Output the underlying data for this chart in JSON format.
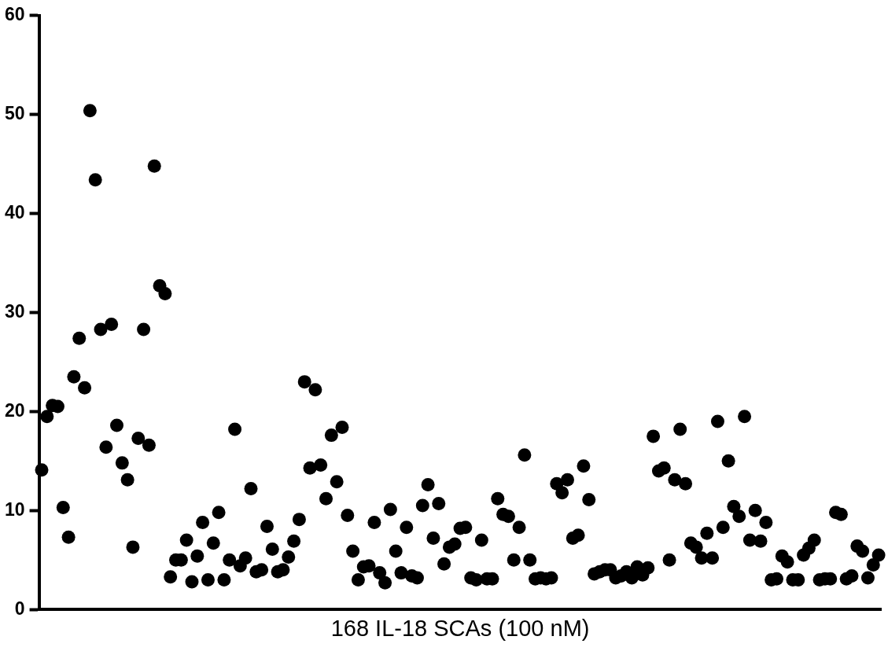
{
  "chart_data": {
    "type": "scatter",
    "xlabel": "168 IL-18 SCAs (100 nM)",
    "categories": [
      null,
      null,
      null,
      null,
      null,
      null,
      null,
      null,
      null,
      null,
      null,
      null,
      null,
      null,
      null,
      null,
      null,
      null,
      null,
      null,
      null,
      null,
      null,
      null,
      null,
      null,
      null,
      null,
      null,
      null,
      null,
      null,
      null,
      null,
      null,
      null,
      null,
      null,
      null,
      null,
      null,
      null,
      null,
      null,
      null,
      null,
      null,
      null,
      null,
      null,
      null,
      null,
      null,
      null,
      null,
      null,
      null,
      null,
      null,
      null,
      null,
      null,
      null,
      null,
      null,
      null,
      null,
      null,
      null,
      null,
      null,
      null,
      null,
      null,
      null,
      null,
      null,
      null,
      null,
      null,
      null,
      null,
      null,
      null,
      null,
      null,
      null,
      null,
      null,
      null,
      null,
      null,
      null,
      null,
      null,
      null,
      null,
      null,
      null,
      null,
      null,
      null,
      null,
      null,
      null,
      null,
      null,
      null,
      null,
      null,
      null,
      null,
      null,
      null,
      null,
      null,
      null,
      null,
      null,
      null,
      null,
      null,
      null,
      null,
      null,
      null,
      null,
      null,
      null,
      null,
      null,
      null,
      null,
      null,
      null,
      null,
      null,
      null,
      null,
      null,
      null,
      null,
      null,
      null,
      null,
      null,
      null,
      null,
      null,
      null,
      null,
      null,
      null,
      null,
      null,
      null,
      null
    ],
    "values": [
      14.1,
      19.5,
      20.6,
      20.5,
      10.3,
      7.3,
      23.5,
      27.4,
      22.4,
      50.4,
      43.4,
      28.3,
      16.4,
      28.8,
      18.6,
      14.8,
      13.1,
      6.3,
      17.3,
      28.3,
      16.6,
      44.8,
      32.7,
      31.9,
      3.3,
      5.0,
      5.0,
      7.0,
      2.8,
      5.4,
      8.8,
      3.0,
      6.7,
      9.8,
      3.0,
      5.0,
      18.2,
      4.4,
      5.2,
      12.2,
      3.8,
      4.0,
      8.4,
      6.1,
      3.8,
      4.0,
      5.3,
      6.9,
      9.1,
      23.0,
      14.3,
      22.2,
      14.6,
      11.2,
      17.6,
      12.9,
      18.4,
      9.5,
      5.9,
      3.0,
      4.3,
      4.4,
      8.8,
      3.7,
      2.7,
      10.1,
      5.9,
      3.7,
      8.3,
      3.4,
      3.2,
      10.5,
      12.6,
      7.2,
      10.7,
      4.6,
      6.3,
      6.6,
      8.2,
      8.3,
      3.2,
      3.0,
      7.0,
      3.1,
      3.1,
      11.2,
      9.6,
      9.4,
      5.0,
      8.3,
      15.6,
      5.0,
      3.1,
      3.2,
      3.1,
      3.2,
      12.7,
      11.8,
      13.1,
      7.2,
      7.5,
      14.5,
      11.1,
      3.6,
      3.8,
      4.0,
      4.0,
      3.2,
      3.4,
      3.8,
      3.2,
      4.3,
      3.5,
      4.2,
      17.5,
      14.0,
      14.3,
      5.0,
      13.1,
      18.2,
      12.7,
      6.7,
      6.3,
      5.2,
      7.7,
      5.2,
      19.0,
      8.3,
      15.0,
      10.4,
      9.4,
      19.5,
      7.0,
      10.0,
      6.9,
      8.8,
      3.0,
      3.1,
      5.4,
      4.8,
      3.0,
      3.0,
      5.5,
      6.2,
      7.0,
      3.0,
      3.1,
      3.1,
      9.8,
      9.6,
      3.1,
      3.4,
      6.4,
      5.9,
      3.2,
      4.5,
      5.5
    ],
    "color": "#000000",
    "marker": "circle",
    "ylim": [
      0,
      60
    ],
    "yticks": [
      0,
      10,
      20,
      30,
      40,
      50,
      60
    ],
    "tick_labels": "y",
    "grid": false,
    "legend": false
  }
}
